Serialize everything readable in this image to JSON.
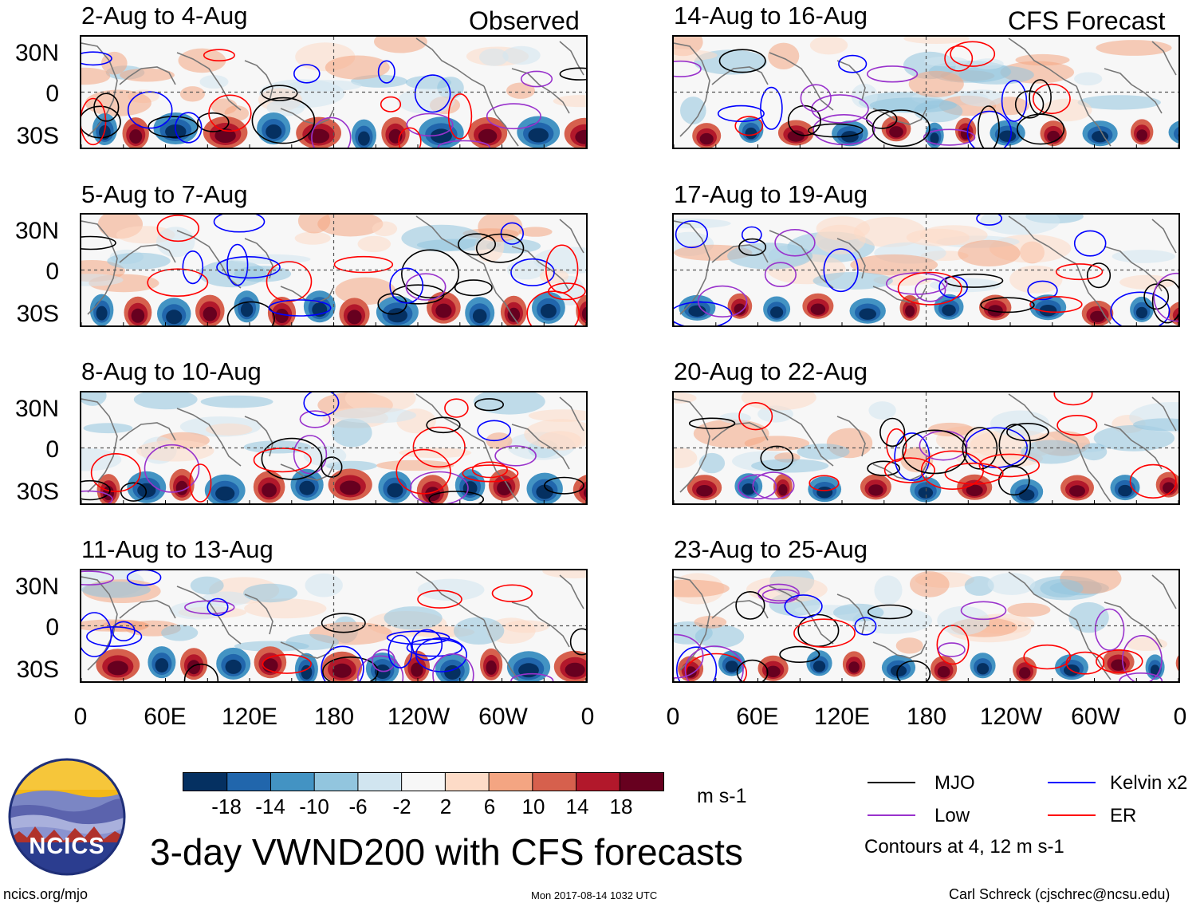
{
  "column_headers": {
    "left": "Observed",
    "right": "CFS Forecast"
  },
  "panels": [
    {
      "title": "2-Aug to 4-Aug",
      "kind": "observed"
    },
    {
      "title": "5-Aug to 7-Aug",
      "kind": "observed"
    },
    {
      "title": "8-Aug to 10-Aug",
      "kind": "observed"
    },
    {
      "title": "11-Aug to 13-Aug",
      "kind": "observed"
    },
    {
      "title": "14-Aug to 16-Aug",
      "kind": "forecast"
    },
    {
      "title": "17-Aug to 19-Aug",
      "kind": "forecast"
    },
    {
      "title": "20-Aug to 22-Aug",
      "kind": "forecast"
    },
    {
      "title": "23-Aug to 25-Aug",
      "kind": "forecast"
    }
  ],
  "lat_labels": [
    "30N",
    "0",
    "30S"
  ],
  "lon_labels": [
    "0",
    "60E",
    "120E",
    "180",
    "120W",
    "60W",
    "0"
  ],
  "colorbar": {
    "ticks": [
      "-18",
      "-14",
      "-10",
      "-6",
      "-2",
      "2",
      "6",
      "10",
      "14",
      "18"
    ],
    "colors": [
      "#053061",
      "#2166ac",
      "#4393c3",
      "#92c5de",
      "#d1e5f0",
      "#f7f7f7",
      "#fddbc7",
      "#f4a582",
      "#d6604d",
      "#b2182b",
      "#67001f"
    ],
    "unit": "m s-1"
  },
  "legend": {
    "items": [
      {
        "label": "MJO",
        "color": "#000000"
      },
      {
        "label": "Kelvin x2",
        "color": "#0000ff"
      },
      {
        "label": "Low",
        "color": "#9932cc"
      },
      {
        "label": "ER",
        "color": "#ff0000"
      }
    ],
    "note": "Contours at 4, 12 m s-1"
  },
  "logo_text": "NCICS",
  "main_title": "3-day VWND200 with CFS forecasts",
  "footer": {
    "site": "ncics.org/mjo",
    "timestamp": "Mon 2017-08-14 1032 UTC",
    "author": "Carl Schreck (cjschrec@ncsu.edu)"
  }
}
